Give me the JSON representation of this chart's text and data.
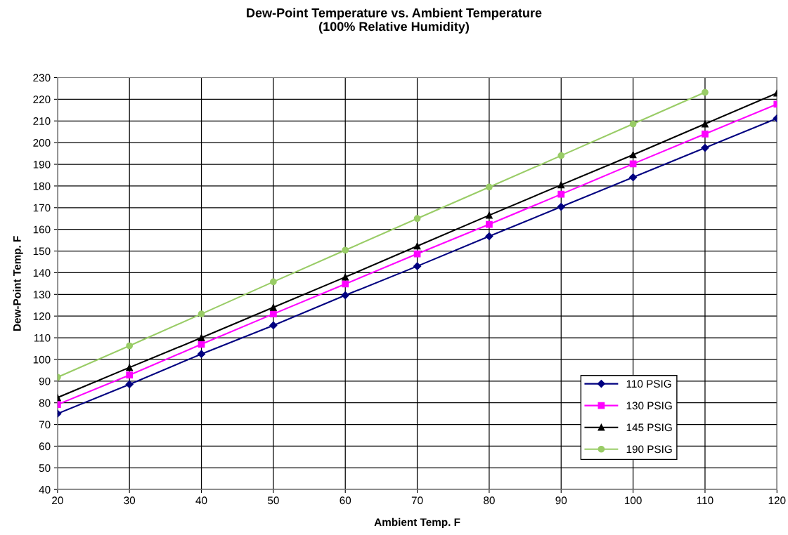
{
  "chart_data": {
    "type": "line",
    "title": "Dew-Point Temperature vs. Ambient Temperature\n(100% Relative Humidity)",
    "xlabel": "Ambient Temp. F",
    "ylabel": "Dew-Point Temp. F",
    "x": [
      20,
      30,
      40,
      50,
      60,
      70,
      80,
      90,
      100,
      110,
      120
    ],
    "series": [
      {
        "name": "110 PSIG",
        "color": "#000080",
        "marker": "diamond",
        "values": [
          75,
          88.5,
          102.5,
          115.7,
          129.6,
          143,
          156.8,
          170.4,
          184,
          197.6,
          211.2
        ]
      },
      {
        "name": "130 PSIG",
        "color": "#ff00ff",
        "marker": "square",
        "values": [
          79.2,
          92.8,
          107,
          121,
          134.8,
          148.7,
          162.3,
          176.2,
          190.2,
          204,
          217.7
        ]
      },
      {
        "name": "145 PSIG",
        "color": "#000000",
        "marker": "triangle",
        "values": [
          82.4,
          96.3,
          110,
          124,
          138,
          152.3,
          166.5,
          180.5,
          194.4,
          208.6,
          222.8
        ]
      },
      {
        "name": "190 PSIG",
        "color": "#99cc66",
        "marker": "circle",
        "values": [
          91.8,
          106.3,
          121,
          135.8,
          150.4,
          165,
          179.5,
          194,
          208.6,
          223.2,
          null
        ]
      }
    ],
    "xlim": [
      20,
      120
    ],
    "xticks": [
      20,
      30,
      40,
      50,
      60,
      70,
      80,
      90,
      100,
      110,
      120
    ],
    "ylim": [
      40,
      230
    ],
    "yticks": [
      40,
      50,
      60,
      70,
      80,
      90,
      100,
      110,
      120,
      130,
      140,
      150,
      160,
      170,
      180,
      190,
      200,
      210,
      220,
      230
    ],
    "grid": true,
    "legend": "bottom right",
    "line_style": "solid"
  }
}
